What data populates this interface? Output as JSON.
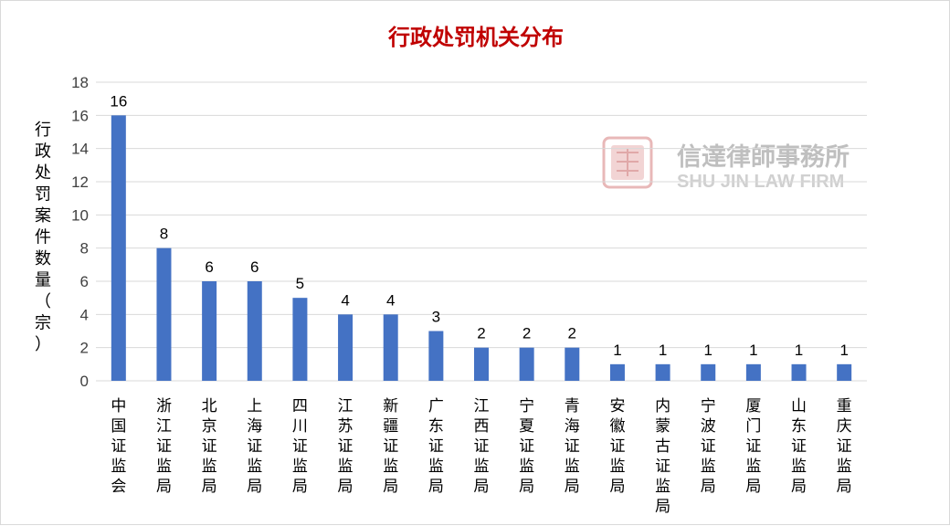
{
  "chart_data": {
    "type": "bar",
    "title": "行政处罚机关分布",
    "ylabel": "行政处罚案件数量（宗）",
    "xlabel": "",
    "ylim": [
      0,
      18
    ],
    "yticks": [
      0,
      2,
      4,
      6,
      8,
      10,
      12,
      14,
      16,
      18
    ],
    "grid": true,
    "legend": "none",
    "categories": [
      "中国证监会",
      "浙江证监局",
      "北京证监局",
      "上海证监局",
      "四川证监局",
      "江苏证监局",
      "新疆证监局",
      "广东证监局",
      "江西证监局",
      "宁夏证监局",
      "青海证监局",
      "安徽证监局",
      "内蒙古证监局",
      "宁波证监局",
      "厦门证监局",
      "山东证监局",
      "重庆证监局"
    ],
    "values": [
      16,
      8,
      6,
      6,
      5,
      4,
      4,
      3,
      2,
      2,
      2,
      1,
      1,
      1,
      1,
      1,
      1
    ]
  },
  "watermark": {
    "name_cn": "信達律師事務所",
    "name_en": "SHU JIN LAW FIRM"
  },
  "colors": {
    "bar": "#4472c4",
    "title": "#c00000",
    "grid": "#d9d9d9",
    "watermark_cn": "#bfbfbf",
    "watermark_en": "#d0d0d0",
    "seal": "#e8b8b8"
  }
}
